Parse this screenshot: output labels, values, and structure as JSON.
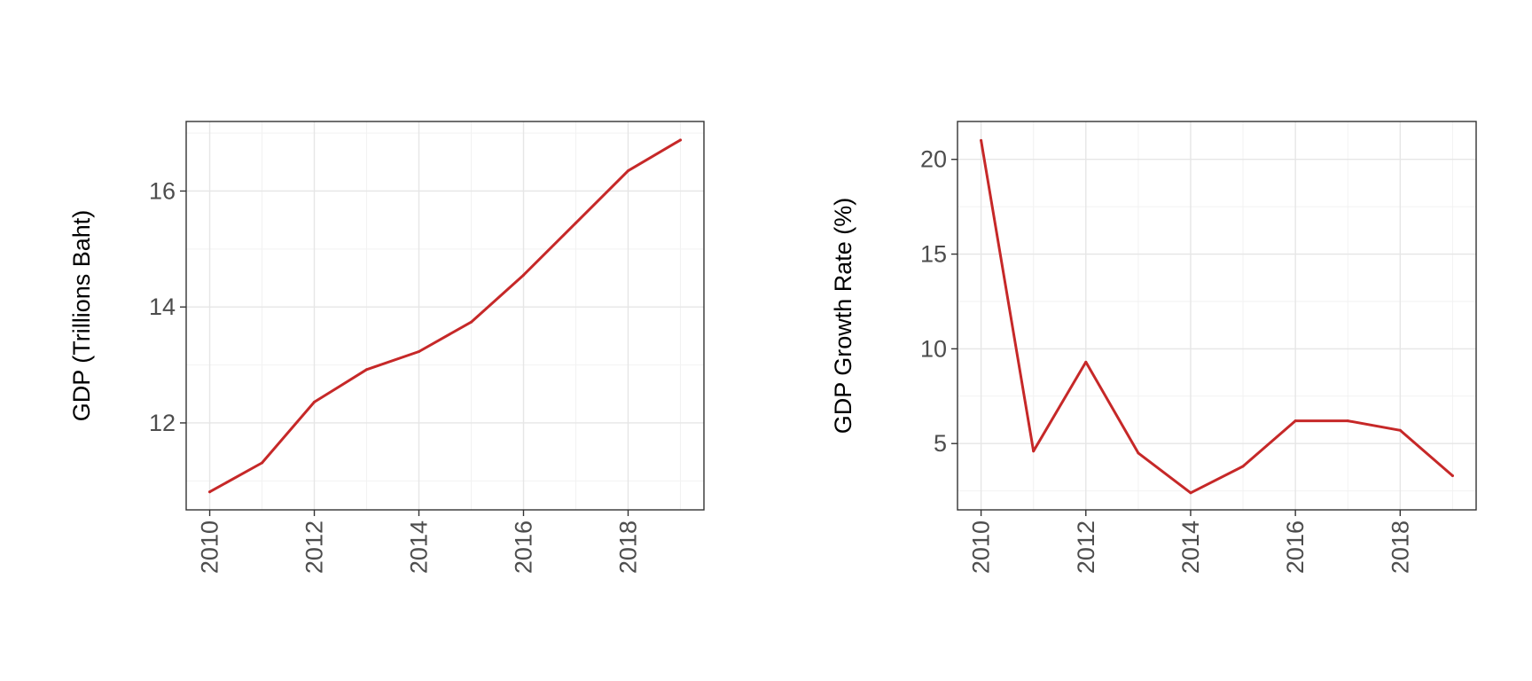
{
  "line_color": "#c62828",
  "chart_data": [
    {
      "type": "line",
      "ylabel": "GDP (Trillions Baht)",
      "xlim": [
        2009.55,
        2019.45
      ],
      "ylim": [
        10.5,
        17.2
      ],
      "x_ticks": [
        2010,
        2012,
        2014,
        2016,
        2018
      ],
      "x_tick_labels": [
        "2010",
        "2012",
        "2014",
        "2016",
        "2018"
      ],
      "y_ticks": [
        12,
        14,
        16
      ],
      "y_tick_labels": [
        "12",
        "14",
        "16"
      ],
      "grid": true,
      "x": [
        2010,
        2011,
        2012,
        2013,
        2014,
        2015,
        2016,
        2017,
        2018,
        2019
      ],
      "values": [
        10.81,
        11.31,
        12.36,
        12.92,
        13.23,
        13.74,
        14.55,
        15.45,
        16.35,
        16.88
      ]
    },
    {
      "type": "line",
      "ylabel": "GDP Growth Rate (%)",
      "xlim": [
        2009.55,
        2019.45
      ],
      "ylim": [
        1.5,
        22
      ],
      "x_ticks": [
        2010,
        2012,
        2014,
        2016,
        2018
      ],
      "x_tick_labels": [
        "2010",
        "2012",
        "2014",
        "2016",
        "2018"
      ],
      "y_ticks": [
        5,
        10,
        15,
        20
      ],
      "y_tick_labels": [
        "5",
        "10",
        "15",
        "20"
      ],
      "grid": true,
      "x": [
        2010,
        2011,
        2012,
        2013,
        2014,
        2015,
        2016,
        2017,
        2018,
        2019
      ],
      "values": [
        21.0,
        4.6,
        9.3,
        4.5,
        2.4,
        3.8,
        6.2,
        6.2,
        5.7,
        3.3
      ]
    }
  ]
}
